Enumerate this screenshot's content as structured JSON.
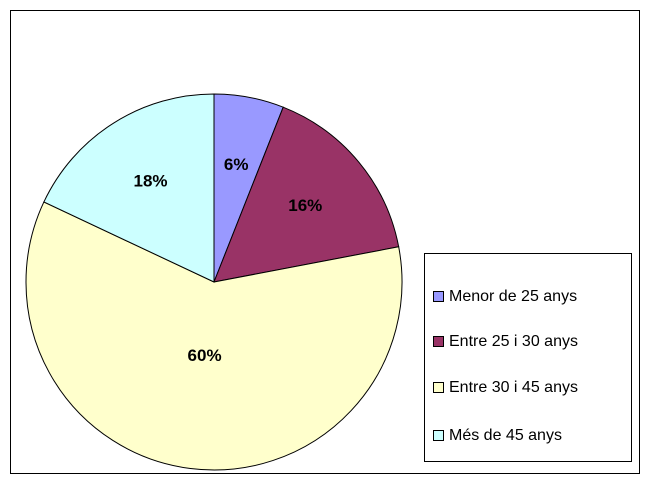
{
  "chart_data": {
    "type": "pie",
    "categories": [
      "Menor de 25 anys",
      "Entre 25 i 30 anys",
      "Entre 30 i 45 anys",
      "Més de 45 anys"
    ],
    "values": [
      6,
      16,
      60,
      18
    ],
    "value_labels": [
      "6%",
      "16%",
      "60%",
      "18%"
    ],
    "colors": [
      "#9999ff",
      "#993366",
      "#ffffcc",
      "#ccffff"
    ],
    "legend": "right"
  }
}
